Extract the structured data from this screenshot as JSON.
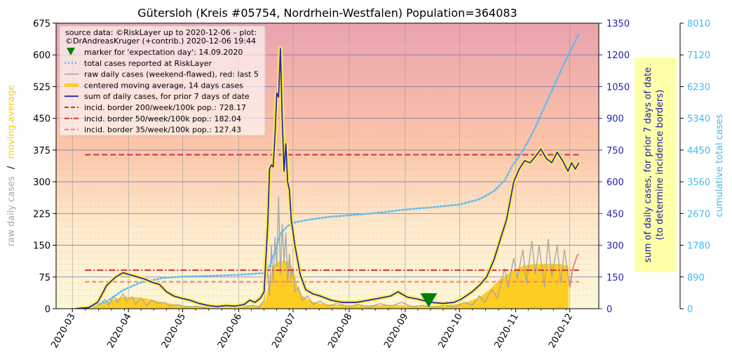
{
  "chart_data": {
    "type": "line",
    "title": "Gütersloh (Kreis #05754, Nordrhein-Westfalen) Population=364083",
    "x_ticks": [
      "2020-03",
      "2020-04",
      "2020-05",
      "2020-06",
      "2020-07",
      "2020-08",
      "2020-09",
      "2020-10",
      "2020-11",
      "2020-12"
    ],
    "left_axis": {
      "label_parts": [
        "raw daily cases",
        "/",
        "moving average"
      ],
      "ylim": [
        0,
        675
      ],
      "ticks": [
        "0",
        "75",
        "150",
        "225",
        "300",
        "375",
        "450",
        "525",
        "600",
        "675"
      ]
    },
    "right_axis": {
      "label_lines": [
        "sum of daily cases, for prior 7 days of date",
        "(to determine incidence borders)"
      ],
      "ylim": [
        0,
        1350
      ],
      "ticks": [
        "0",
        "150",
        "300",
        "450",
        "600",
        "750",
        "900",
        "1050",
        "1200",
        "1350"
      ]
    },
    "far_right_axis": {
      "label": "cumulative total cases",
      "ylim": [
        0,
        8010
      ],
      "ticks": [
        "0",
        "890",
        "1780",
        "2670",
        "3560",
        "4450",
        "5340",
        "6230",
        "7120",
        "8010"
      ]
    },
    "grid": true,
    "legend": {
      "position": "top-left",
      "source_lines": [
        "source data: ©RiskLayer up to 2020-12-06 – plot:",
        "©DrAndreasKruger (+contrib.) 2020-12-06 19:44"
      ],
      "entries": [
        {
          "label": "marker for 'expectation day': 14.09.2020",
          "style": "triangle",
          "color": "#008000"
        },
        {
          "label": "total cases reported at RiskLayer",
          "style": "dotted",
          "color": "#5bbcf0"
        },
        {
          "label": "raw daily cases (weekend-flawed), red: last 5",
          "style": "solid",
          "color": "#a8a8a8"
        },
        {
          "label": "centered moving average, 14 days cases",
          "style": "thick",
          "color": "#ffcc22"
        },
        {
          "label": "sum of daily cases, for prior 7 days of date",
          "style": "solid",
          "color": "#2222bb"
        },
        {
          "label": "incid. border 200/week/100k pop.: 728.17",
          "style": "dashed",
          "color": "#cc3333"
        },
        {
          "label": "incid. border 50/week/100k pop.: 182.04",
          "style": "dashdot",
          "color": "#cc3333"
        },
        {
          "label": "incid. border 35/week/100k pop.: 127.43",
          "style": "dashed",
          "color": "#f08080"
        }
      ]
    },
    "incidence_borders": [
      728.17,
      182.04,
      127.43
    ],
    "expectation_day": "2020-09-14",
    "series": [
      {
        "name": "centered moving average, 14 days cases",
        "axis": "left",
        "color": "#ffcc22",
        "points": [
          [
            "2020-03-03",
            0
          ],
          [
            "2020-03-10",
            1
          ],
          [
            "2020-03-15",
            5
          ],
          [
            "2020-03-20",
            14
          ],
          [
            "2020-03-25",
            22
          ],
          [
            "2020-03-30",
            27
          ],
          [
            "2020-04-05",
            26
          ],
          [
            "2020-04-12",
            22
          ],
          [
            "2020-04-20",
            14
          ],
          [
            "2020-04-28",
            8
          ],
          [
            "2020-05-05",
            5
          ],
          [
            "2020-05-15",
            3
          ],
          [
            "2020-05-25",
            3
          ],
          [
            "2020-06-05",
            4
          ],
          [
            "2020-06-12",
            6
          ],
          [
            "2020-06-16",
            20
          ],
          [
            "2020-06-18",
            60
          ],
          [
            "2020-06-20",
            100
          ],
          [
            "2020-06-23",
            110
          ],
          [
            "2020-06-26",
            112
          ],
          [
            "2020-06-29",
            110
          ],
          [
            "2020-07-01",
            90
          ],
          [
            "2020-07-03",
            55
          ],
          [
            "2020-07-06",
            30
          ],
          [
            "2020-07-10",
            18
          ],
          [
            "2020-07-15",
            12
          ],
          [
            "2020-07-25",
            7
          ],
          [
            "2020-08-05",
            6
          ],
          [
            "2020-08-15",
            7
          ],
          [
            "2020-08-25",
            8
          ],
          [
            "2020-09-05",
            6
          ],
          [
            "2020-09-15",
            5
          ],
          [
            "2020-09-25",
            6
          ],
          [
            "2020-10-05",
            14
          ],
          [
            "2020-10-12",
            25
          ],
          [
            "2020-10-18",
            45
          ],
          [
            "2020-10-24",
            70
          ],
          [
            "2020-10-30",
            88
          ],
          [
            "2020-11-05",
            100
          ],
          [
            "2020-11-12",
            105
          ],
          [
            "2020-11-20",
            105
          ],
          [
            "2020-11-26",
            104
          ],
          [
            "2020-11-30",
            100
          ]
        ]
      },
      {
        "name": "raw daily cases (weekend-flawed), red: last 5",
        "axis": "left",
        "color": "#a8a8a8",
        "points": [
          [
            "2020-03-08",
            0
          ],
          [
            "2020-03-12",
            3
          ],
          [
            "2020-03-16",
            10
          ],
          [
            "2020-03-19",
            22
          ],
          [
            "2020-03-21",
            8
          ],
          [
            "2020-03-24",
            30
          ],
          [
            "2020-03-26",
            14
          ],
          [
            "2020-03-29",
            35
          ],
          [
            "2020-03-31",
            18
          ],
          [
            "2020-04-03",
            28
          ],
          [
            "2020-04-05",
            10
          ],
          [
            "2020-04-08",
            25
          ],
          [
            "2020-04-11",
            8
          ],
          [
            "2020-04-14",
            20
          ],
          [
            "2020-04-17",
            12
          ],
          [
            "2020-04-21",
            15
          ],
          [
            "2020-04-24",
            6
          ],
          [
            "2020-04-28",
            10
          ],
          [
            "2020-05-03",
            4
          ],
          [
            "2020-05-08",
            6
          ],
          [
            "2020-05-13",
            2
          ],
          [
            "2020-05-20",
            4
          ],
          [
            "2020-05-28",
            3
          ],
          [
            "2020-06-04",
            5
          ],
          [
            "2020-06-09",
            8
          ],
          [
            "2020-06-12",
            3
          ],
          [
            "2020-06-15",
            20
          ],
          [
            "2020-06-17",
            90
          ],
          [
            "2020-06-18",
            30
          ],
          [
            "2020-06-19",
            150
          ],
          [
            "2020-06-20",
            60
          ],
          [
            "2020-06-21",
            170
          ],
          [
            "2020-06-22",
            100
          ],
          [
            "2020-06-23",
            265
          ],
          [
            "2020-06-24",
            80
          ],
          [
            "2020-06-25",
            200
          ],
          [
            "2020-06-26",
            110
          ],
          [
            "2020-06-27",
            180
          ],
          [
            "2020-06-28",
            60
          ],
          [
            "2020-06-29",
            130
          ],
          [
            "2020-06-30",
            70
          ],
          [
            "2020-07-01",
            95
          ],
          [
            "2020-07-02",
            40
          ],
          [
            "2020-07-04",
            50
          ],
          [
            "2020-07-06",
            20
          ],
          [
            "2020-07-09",
            30
          ],
          [
            "2020-07-12",
            10
          ],
          [
            "2020-07-16",
            18
          ],
          [
            "2020-07-20",
            6
          ],
          [
            "2020-07-25",
            12
          ],
          [
            "2020-08-01",
            5
          ],
          [
            "2020-08-06",
            10
          ],
          [
            "2020-08-12",
            4
          ],
          [
            "2020-08-18",
            12
          ],
          [
            "2020-08-24",
            6
          ],
          [
            "2020-08-30",
            15
          ],
          [
            "2020-09-05",
            4
          ],
          [
            "2020-09-11",
            8
          ],
          [
            "2020-09-17",
            3
          ],
          [
            "2020-09-23",
            8
          ],
          [
            "2020-09-29",
            5
          ],
          [
            "2020-10-04",
            15
          ],
          [
            "2020-10-08",
            8
          ],
          [
            "2020-10-12",
            30
          ],
          [
            "2020-10-15",
            15
          ],
          [
            "2020-10-19",
            45
          ],
          [
            "2020-10-22",
            25
          ],
          [
            "2020-10-26",
            95
          ],
          [
            "2020-10-28",
            50
          ],
          [
            "2020-10-31",
            120
          ],
          [
            "2020-11-02",
            70
          ],
          [
            "2020-11-05",
            140
          ],
          [
            "2020-11-07",
            60
          ],
          [
            "2020-11-10",
            160
          ],
          [
            "2020-11-12",
            80
          ],
          [
            "2020-11-14",
            150
          ],
          [
            "2020-11-17",
            50
          ],
          [
            "2020-11-19",
            165
          ],
          [
            "2020-11-21",
            75
          ],
          [
            "2020-11-24",
            150
          ],
          [
            "2020-11-26",
            60
          ],
          [
            "2020-11-28",
            140
          ],
          [
            "2020-12-01",
            50
          ]
        ]
      },
      {
        "name": "raw daily cases, last 5",
        "axis": "left",
        "color": "#e08080",
        "points": [
          [
            "2020-12-01",
            50
          ],
          [
            "2020-12-02",
            80
          ],
          [
            "2020-12-03",
            100
          ],
          [
            "2020-12-05",
            125
          ],
          [
            "2020-12-06",
            130
          ]
        ]
      },
      {
        "name": "sum of daily cases, for prior 7 days of date",
        "axis": "right",
        "color": "#2222bb",
        "points": [
          [
            "2020-03-03",
            0
          ],
          [
            "2020-03-10",
            5
          ],
          [
            "2020-03-15",
            30
          ],
          [
            "2020-03-20",
            110
          ],
          [
            "2020-03-25",
            150
          ],
          [
            "2020-03-29",
            170
          ],
          [
            "2020-04-02",
            160
          ],
          [
            "2020-04-06",
            150
          ],
          [
            "2020-04-10",
            140
          ],
          [
            "2020-04-14",
            125
          ],
          [
            "2020-04-18",
            115
          ],
          [
            "2020-04-22",
            80
          ],
          [
            "2020-04-26",
            60
          ],
          [
            "2020-04-30",
            50
          ],
          [
            "2020-05-05",
            40
          ],
          [
            "2020-05-10",
            25
          ],
          [
            "2020-05-15",
            15
          ],
          [
            "2020-05-20",
            10
          ],
          [
            "2020-05-25",
            15
          ],
          [
            "2020-05-30",
            12
          ],
          [
            "2020-06-04",
            20
          ],
          [
            "2020-06-07",
            40
          ],
          [
            "2020-06-10",
            30
          ],
          [
            "2020-06-13",
            50
          ],
          [
            "2020-06-15",
            80
          ],
          [
            "2020-06-17",
            400
          ],
          [
            "2020-06-18",
            660
          ],
          [
            "2020-06-19",
            680
          ],
          [
            "2020-06-20",
            670
          ],
          [
            "2020-06-21",
            820
          ],
          [
            "2020-06-22",
            1020
          ],
          [
            "2020-06-23",
            1000
          ],
          [
            "2020-06-24",
            1230
          ],
          [
            "2020-06-25",
            900
          ],
          [
            "2020-06-26",
            650
          ],
          [
            "2020-06-27",
            780
          ],
          [
            "2020-06-28",
            600
          ],
          [
            "2020-06-29",
            560
          ],
          [
            "2020-06-30",
            420
          ],
          [
            "2020-07-02",
            300
          ],
          [
            "2020-07-05",
            160
          ],
          [
            "2020-07-08",
            90
          ],
          [
            "2020-07-12",
            70
          ],
          [
            "2020-07-16",
            60
          ],
          [
            "2020-07-22",
            40
          ],
          [
            "2020-07-28",
            30
          ],
          [
            "2020-08-05",
            30
          ],
          [
            "2020-08-12",
            40
          ],
          [
            "2020-08-18",
            50
          ],
          [
            "2020-08-24",
            60
          ],
          [
            "2020-08-28",
            80
          ],
          [
            "2020-09-02",
            55
          ],
          [
            "2020-09-08",
            45
          ],
          [
            "2020-09-15",
            30
          ],
          [
            "2020-09-22",
            25
          ],
          [
            "2020-09-28",
            30
          ],
          [
            "2020-10-02",
            45
          ],
          [
            "2020-10-08",
            80
          ],
          [
            "2020-10-12",
            110
          ],
          [
            "2020-10-16",
            150
          ],
          [
            "2020-10-20",
            230
          ],
          [
            "2020-10-24",
            340
          ],
          [
            "2020-10-27",
            420
          ],
          [
            "2020-10-31",
            600
          ],
          [
            "2020-11-03",
            660
          ],
          [
            "2020-11-06",
            700
          ],
          [
            "2020-11-09",
            690
          ],
          [
            "2020-11-12",
            720
          ],
          [
            "2020-11-15",
            755
          ],
          [
            "2020-11-18",
            710
          ],
          [
            "2020-11-21",
            690
          ],
          [
            "2020-11-24",
            740
          ],
          [
            "2020-11-27",
            700
          ],
          [
            "2020-11-30",
            650
          ],
          [
            "2020-12-02",
            690
          ],
          [
            "2020-12-04",
            660
          ],
          [
            "2020-12-06",
            690
          ]
        ]
      },
      {
        "name": "total cases reported at RiskLayer",
        "axis": "far_right",
        "color": "#5bbcf0",
        "points": [
          [
            "2020-03-03",
            0
          ],
          [
            "2020-03-10",
            20
          ],
          [
            "2020-03-20",
            200
          ],
          [
            "2020-03-29",
            520
          ],
          [
            "2020-04-08",
            740
          ],
          [
            "2020-04-20",
            860
          ],
          [
            "2020-05-01",
            900
          ],
          [
            "2020-05-15",
            920
          ],
          [
            "2020-06-01",
            950
          ],
          [
            "2020-06-15",
            1000
          ],
          [
            "2020-06-18",
            1200
          ],
          [
            "2020-06-21",
            1600
          ],
          [
            "2020-06-24",
            2100
          ],
          [
            "2020-06-28",
            2320
          ],
          [
            "2020-07-02",
            2420
          ],
          [
            "2020-07-10",
            2500
          ],
          [
            "2020-07-20",
            2570
          ],
          [
            "2020-08-01",
            2620
          ],
          [
            "2020-08-15",
            2680
          ],
          [
            "2020-09-01",
            2780
          ],
          [
            "2020-09-15",
            2840
          ],
          [
            "2020-10-01",
            2920
          ],
          [
            "2020-10-12",
            3070
          ],
          [
            "2020-10-20",
            3300
          ],
          [
            "2020-10-26",
            3600
          ],
          [
            "2020-10-30",
            4000
          ],
          [
            "2020-11-04",
            4350
          ],
          [
            "2020-11-08",
            4700
          ],
          [
            "2020-11-12",
            5100
          ],
          [
            "2020-11-16",
            5550
          ],
          [
            "2020-11-20",
            6000
          ],
          [
            "2020-11-24",
            6450
          ],
          [
            "2020-11-28",
            6900
          ],
          [
            "2020-12-02",
            7300
          ],
          [
            "2020-12-06",
            7700
          ]
        ]
      }
    ]
  }
}
